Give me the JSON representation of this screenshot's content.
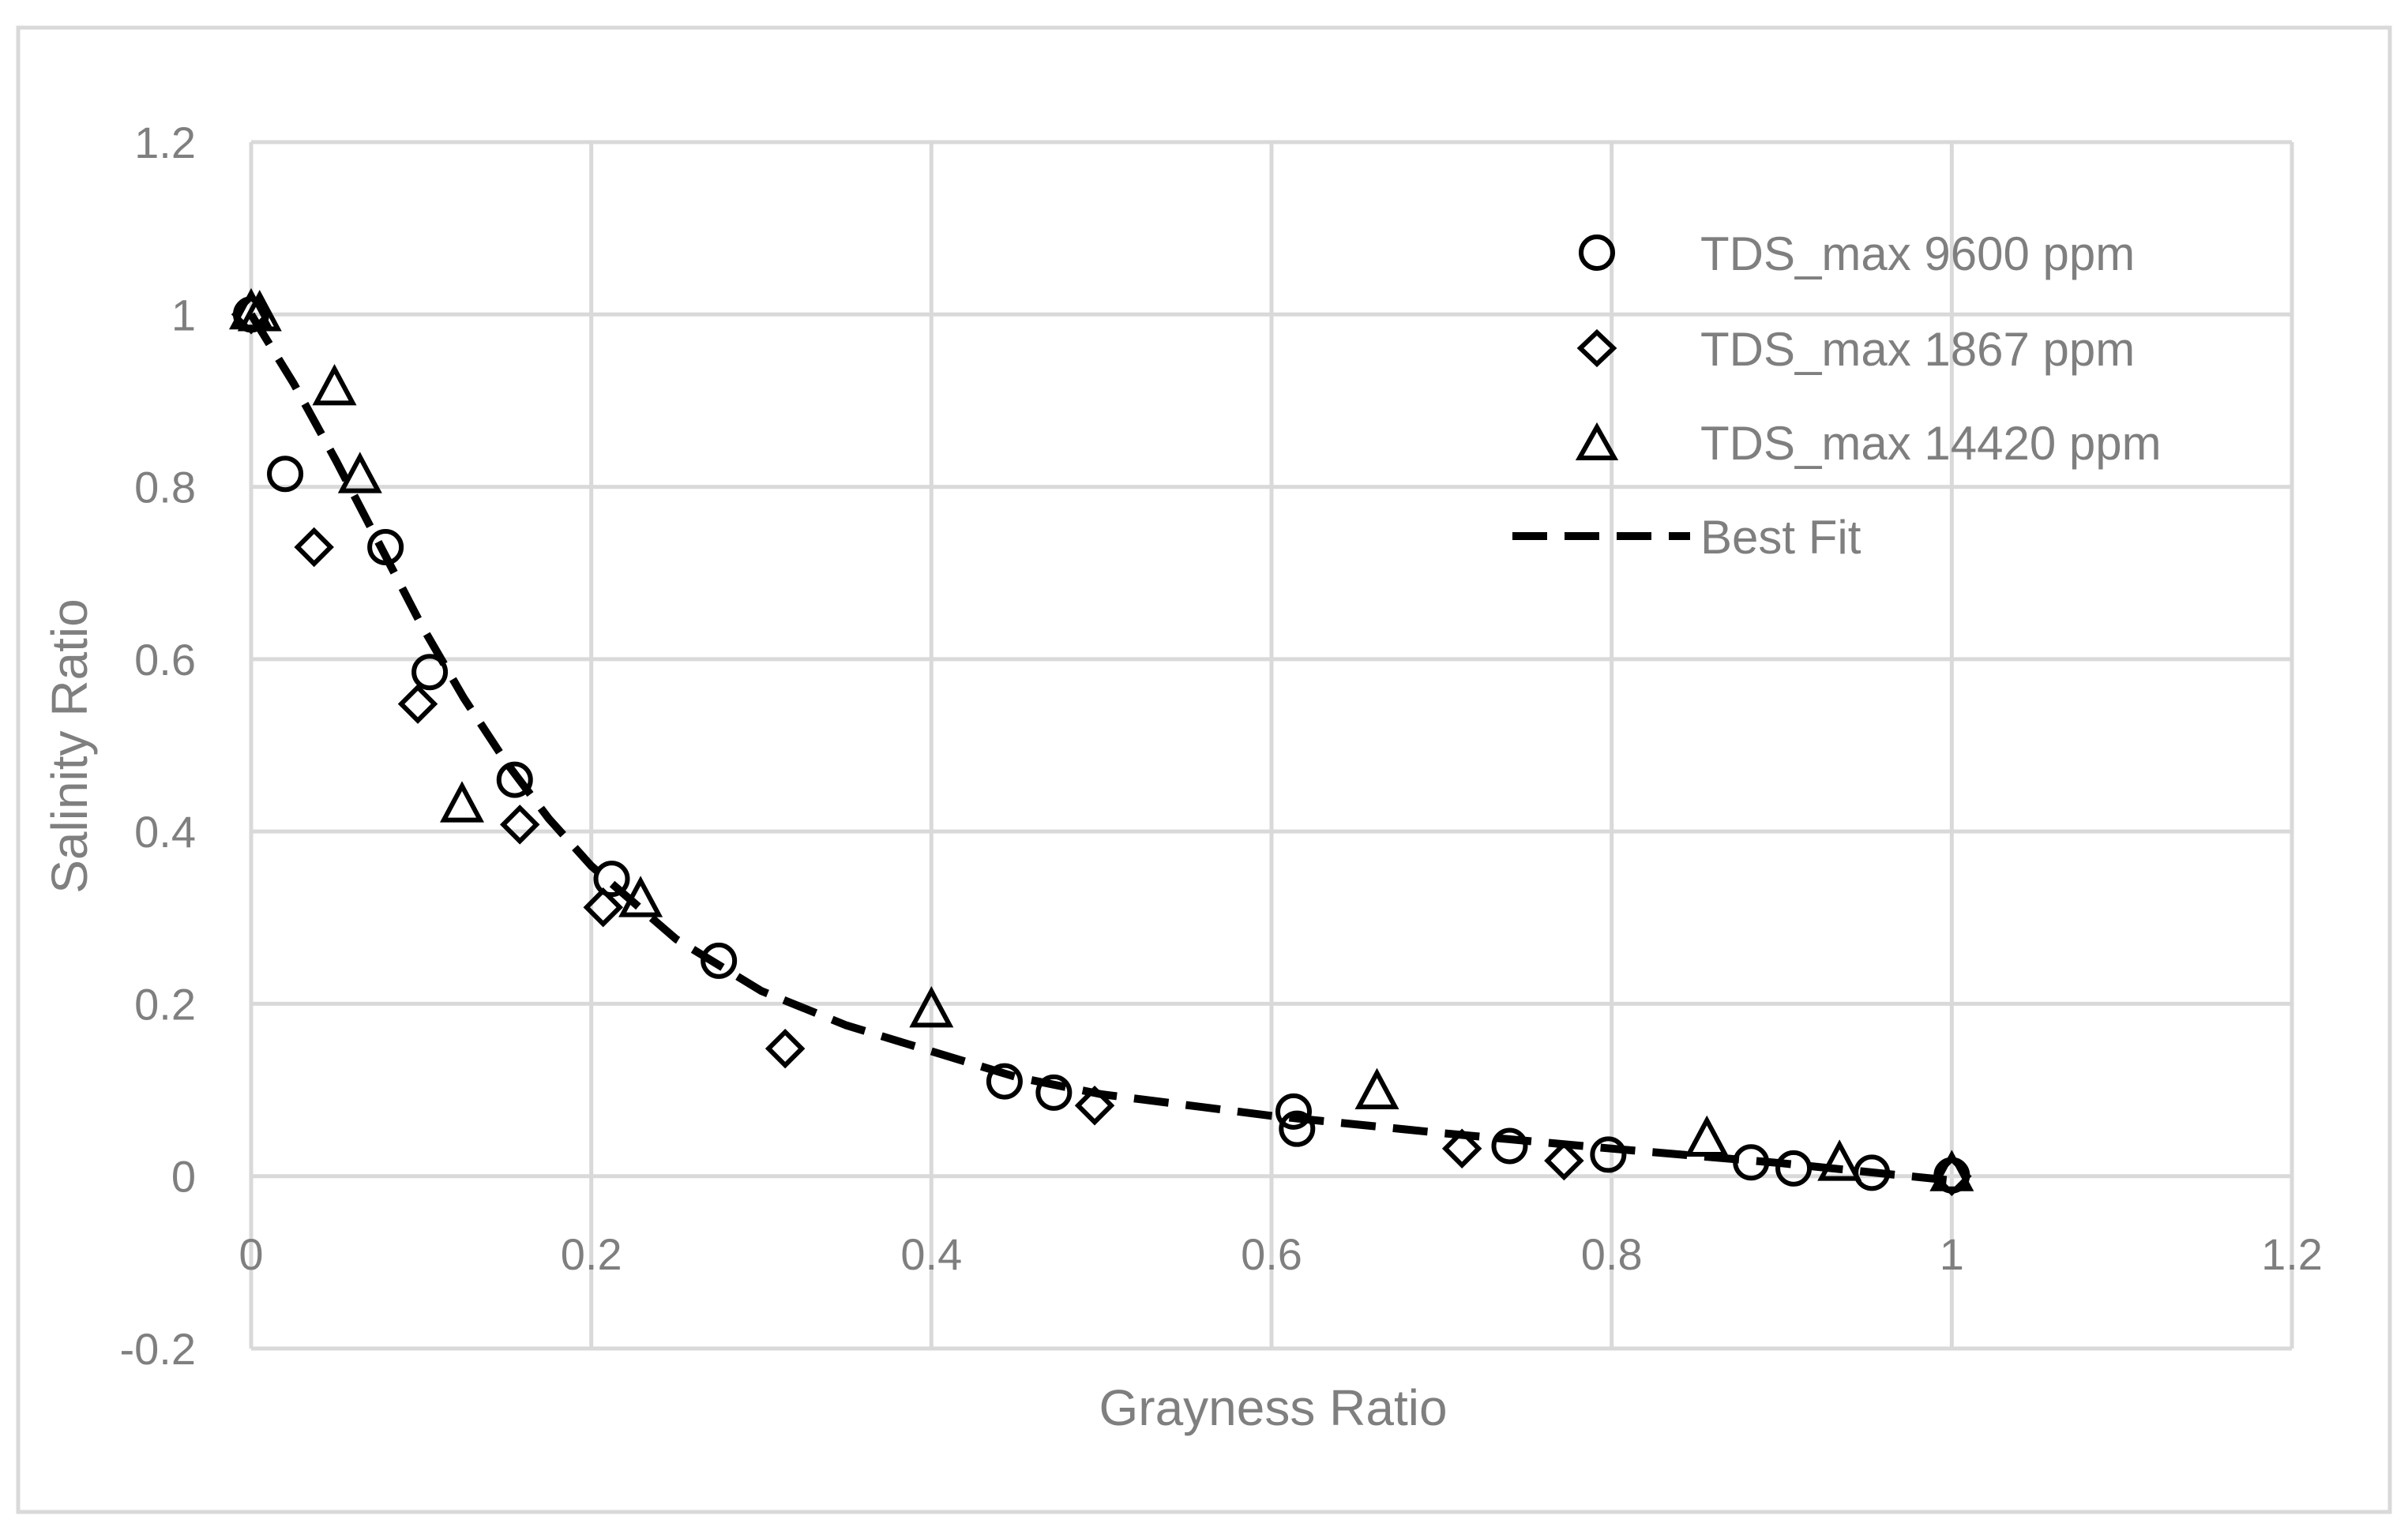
{
  "chart_data": {
    "type": "scatter",
    "title": "",
    "xlabel": "Grayness Ratio",
    "ylabel": "Salinity Ratio",
    "xlim": [
      0,
      1.2
    ],
    "ylim": [
      -0.2,
      1.2
    ],
    "x_ticks": [
      0,
      0.2,
      0.4,
      0.6,
      0.8,
      1,
      1.2
    ],
    "y_ticks": [
      -0.2,
      0,
      0.2,
      0.4,
      0.6,
      0.8,
      1,
      1.2
    ],
    "x_tick_labels": [
      "0",
      "0.2",
      "0.4",
      "0.6",
      "0.8",
      "1",
      "1.2"
    ],
    "y_tick_labels": [
      "-0.2",
      "0",
      "0.2",
      "0.4",
      "0.6",
      "0.8",
      "1",
      "1.2"
    ],
    "grid": true,
    "legend_position": "top-right",
    "series": [
      {
        "name": "TDS_max 9600 ppm",
        "marker": "circle",
        "points": [
          [
            0.0,
            1.0
          ],
          [
            0.02,
            0.815
          ],
          [
            0.079,
            0.73
          ],
          [
            0.105,
            0.585
          ],
          [
            0.155,
            0.46
          ],
          [
            0.212,
            0.345
          ],
          [
            0.275,
            0.25
          ],
          [
            0.443,
            0.11
          ],
          [
            0.472,
            0.097
          ],
          [
            0.613,
            0.075
          ],
          [
            0.615,
            0.055
          ],
          [
            0.74,
            0.035
          ],
          [
            0.798,
            0.025
          ],
          [
            0.882,
            0.016
          ],
          [
            0.907,
            0.009
          ],
          [
            0.953,
            0.004
          ],
          [
            1.0,
            0.001
          ]
        ]
      },
      {
        "name": "TDS_max 1867 ppm",
        "marker": "diamond",
        "points": [
          [
            0.0,
            1.0
          ],
          [
            0.037,
            0.73
          ],
          [
            0.098,
            0.548
          ],
          [
            0.158,
            0.408
          ],
          [
            0.207,
            0.312
          ],
          [
            0.314,
            0.148
          ],
          [
            0.496,
            0.082
          ],
          [
            0.712,
            0.032
          ],
          [
            0.772,
            0.018
          ],
          [
            1.0,
            0.0
          ]
        ]
      },
      {
        "name": "TDS_max 14420 ppm",
        "marker": "triangle",
        "points": [
          [
            0.0,
            1.0
          ],
          [
            0.005,
            0.998
          ],
          [
            0.049,
            0.912
          ],
          [
            0.064,
            0.81
          ],
          [
            0.124,
            0.428
          ],
          [
            0.229,
            0.318
          ],
          [
            0.4,
            0.19
          ],
          [
            0.662,
            0.095
          ],
          [
            0.856,
            0.04
          ],
          [
            0.934,
            0.012
          ],
          [
            1.0,
            0.0
          ]
        ]
      },
      {
        "name": "Best Fit",
        "line": "dashed",
        "points": [
          [
            0.0,
            1.0
          ],
          [
            0.025,
            0.92
          ],
          [
            0.05,
            0.83
          ],
          [
            0.075,
            0.735
          ],
          [
            0.1,
            0.64
          ],
          [
            0.125,
            0.555
          ],
          [
            0.15,
            0.48
          ],
          [
            0.175,
            0.415
          ],
          [
            0.2,
            0.36
          ],
          [
            0.25,
            0.275
          ],
          [
            0.3,
            0.215
          ],
          [
            0.35,
            0.175
          ],
          [
            0.4,
            0.145
          ],
          [
            0.45,
            0.115
          ],
          [
            0.5,
            0.095
          ],
          [
            0.6,
            0.07
          ],
          [
            0.7,
            0.05
          ],
          [
            0.8,
            0.032
          ],
          [
            0.9,
            0.015
          ],
          [
            1.0,
            -0.005
          ]
        ]
      }
    ]
  },
  "colors": {
    "grid": "#d9d9d9",
    "border": "#d9d9d9",
    "text": "#7f7f7f",
    "marker": "#000000"
  }
}
